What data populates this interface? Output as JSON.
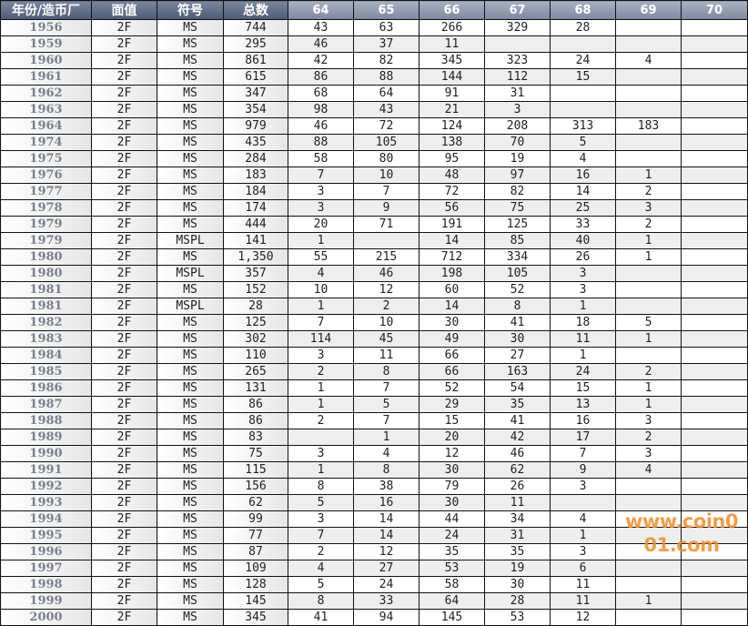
{
  "headers": [
    "年份/造币厂",
    "面值",
    "符号",
    "总数",
    "64",
    "65",
    "66",
    "67",
    "68",
    "69",
    "70"
  ],
  "rows": [
    [
      "1956",
      "2F",
      "MS",
      "744",
      "43",
      "63",
      "266",
      "329",
      "28",
      "",
      ""
    ],
    [
      "1959",
      "2F",
      "MS",
      "295",
      "46",
      "37",
      "11",
      "",
      "",
      "",
      ""
    ],
    [
      "1960",
      "2F",
      "MS",
      "861",
      "42",
      "82",
      "345",
      "323",
      "24",
      "4",
      ""
    ],
    [
      "1961",
      "2F",
      "MS",
      "615",
      "86",
      "88",
      "144",
      "112",
      "15",
      "",
      ""
    ],
    [
      "1962",
      "2F",
      "MS",
      "347",
      "68",
      "64",
      "91",
      "31",
      "",
      "",
      ""
    ],
    [
      "1963",
      "2F",
      "MS",
      "354",
      "98",
      "43",
      "21",
      "3",
      "",
      "",
      ""
    ],
    [
      "1964",
      "2F",
      "MS",
      "979",
      "46",
      "72",
      "124",
      "208",
      "313",
      "183",
      ""
    ],
    [
      "1974",
      "2F",
      "MS",
      "435",
      "88",
      "105",
      "138",
      "70",
      "5",
      "",
      ""
    ],
    [
      "1975",
      "2F",
      "MS",
      "284",
      "58",
      "80",
      "95",
      "19",
      "4",
      "",
      ""
    ],
    [
      "1976",
      "2F",
      "MS",
      "183",
      "7",
      "10",
      "48",
      "97",
      "16",
      "1",
      ""
    ],
    [
      "1977",
      "2F",
      "MS",
      "184",
      "3",
      "7",
      "72",
      "82",
      "14",
      "2",
      ""
    ],
    [
      "1978",
      "2F",
      "MS",
      "174",
      "3",
      "9",
      "56",
      "75",
      "25",
      "3",
      ""
    ],
    [
      "1979",
      "2F",
      "MS",
      "444",
      "20",
      "71",
      "191",
      "125",
      "33",
      "2",
      ""
    ],
    [
      "1979",
      "2F",
      "MSPL",
      "141",
      "1",
      "",
      "14",
      "85",
      "40",
      "1",
      ""
    ],
    [
      "1980",
      "2F",
      "MS",
      "1,350",
      "55",
      "215",
      "712",
      "334",
      "26",
      "1",
      ""
    ],
    [
      "1980",
      "2F",
      "MSPL",
      "357",
      "4",
      "46",
      "198",
      "105",
      "3",
      "",
      ""
    ],
    [
      "1981",
      "2F",
      "MS",
      "152",
      "10",
      "12",
      "60",
      "52",
      "3",
      "",
      ""
    ],
    [
      "1981",
      "2F",
      "MSPL",
      "28",
      "1",
      "2",
      "14",
      "8",
      "1",
      "",
      ""
    ],
    [
      "1982",
      "2F",
      "MS",
      "125",
      "7",
      "10",
      "30",
      "41",
      "18",
      "5",
      ""
    ],
    [
      "1983",
      "2F",
      "MS",
      "302",
      "114",
      "45",
      "49",
      "30",
      "11",
      "1",
      ""
    ],
    [
      "1984",
      "2F",
      "MS",
      "110",
      "3",
      "11",
      "66",
      "27",
      "1",
      "",
      ""
    ],
    [
      "1985",
      "2F",
      "MS",
      "265",
      "2",
      "8",
      "66",
      "163",
      "24",
      "2",
      ""
    ],
    [
      "1986",
      "2F",
      "MS",
      "131",
      "1",
      "7",
      "52",
      "54",
      "15",
      "1",
      ""
    ],
    [
      "1987",
      "2F",
      "MS",
      "86",
      "1",
      "5",
      "29",
      "35",
      "13",
      "1",
      ""
    ],
    [
      "1988",
      "2F",
      "MS",
      "86",
      "2",
      "7",
      "15",
      "41",
      "16",
      "3",
      ""
    ],
    [
      "1989",
      "2F",
      "MS",
      "83",
      "",
      "1",
      "20",
      "42",
      "17",
      "2",
      ""
    ],
    [
      "1990",
      "2F",
      "MS",
      "75",
      "3",
      "4",
      "12",
      "46",
      "7",
      "3",
      ""
    ],
    [
      "1991",
      "2F",
      "MS",
      "115",
      "1",
      "8",
      "30",
      "62",
      "9",
      "4",
      ""
    ],
    [
      "1992",
      "2F",
      "MS",
      "156",
      "8",
      "38",
      "79",
      "26",
      "3",
      "",
      ""
    ],
    [
      "1993",
      "2F",
      "MS",
      "62",
      "5",
      "16",
      "30",
      "11",
      "",
      "",
      ""
    ],
    [
      "1994",
      "2F",
      "MS",
      "99",
      "3",
      "14",
      "44",
      "34",
      "4",
      "",
      ""
    ],
    [
      "1995",
      "2F",
      "MS",
      "77",
      "7",
      "14",
      "24",
      "31",
      "1",
      "",
      ""
    ],
    [
      "1996",
      "2F",
      "MS",
      "87",
      "2",
      "12",
      "35",
      "35",
      "3",
      "",
      ""
    ],
    [
      "1997",
      "2F",
      "MS",
      "109",
      "4",
      "27",
      "53",
      "19",
      "6",
      "",
      ""
    ],
    [
      "1998",
      "2F",
      "MS",
      "128",
      "5",
      "24",
      "58",
      "30",
      "11",
      "",
      ""
    ],
    [
      "1999",
      "2F",
      "MS",
      "145",
      "8",
      "33",
      "64",
      "28",
      "11",
      "1",
      ""
    ],
    [
      "2000",
      "2F",
      "MS",
      "345",
      "41",
      "94",
      "145",
      "53",
      "12",
      "",
      ""
    ]
  ],
  "watermark": "www.coin001.com",
  "colors": {
    "header_main": "#5a6580",
    "header_grade": "#8a93aa",
    "watermark": "#f08c28"
  }
}
